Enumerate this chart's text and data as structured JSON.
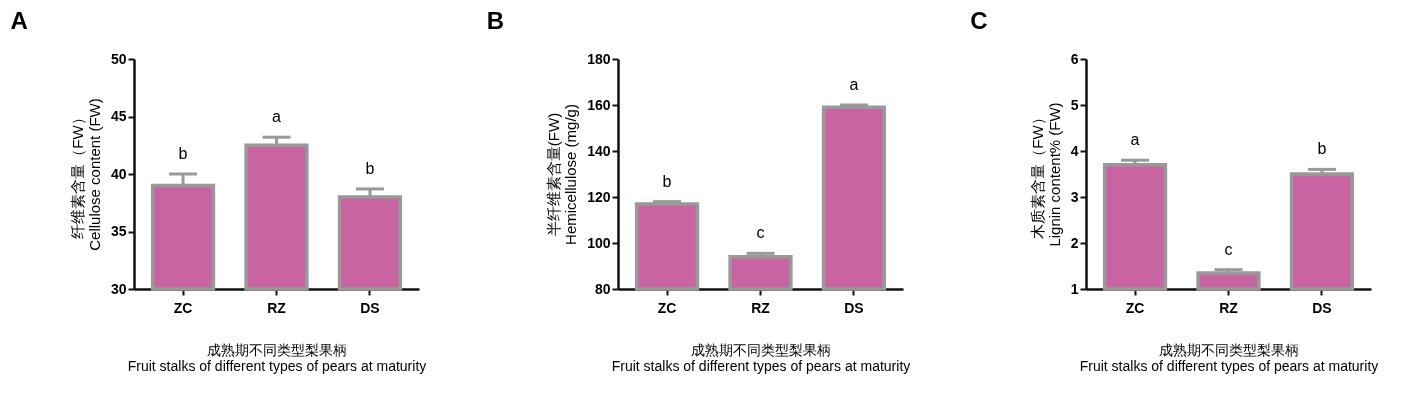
{
  "chart_data": [
    {
      "type": "bar",
      "title": "A",
      "xlabel": "成熟期不同类型梨果柄\nFruit stalks of different types of pears at maturity",
      "ylabel": "纤维素含量（FW）\nCellulose content (FW)",
      "categories": [
        "ZC",
        "RZ",
        "DS"
      ],
      "values": [
        39.0,
        42.5,
        38.0
      ],
      "errors": [
        1.0,
        0.7,
        0.7
      ],
      "color": "#c964a3",
      "ylim": [
        30,
        50
      ],
      "yticks": [
        30,
        35,
        40,
        45,
        50
      ],
      "grid": false,
      "annotations": [
        "b",
        "a",
        "b"
      ]
    },
    {
      "type": "bar",
      "title": "B",
      "xlabel": "成熟期不同类型梨果柄\nFruit stalks of different types of pears at maturity",
      "ylabel": "半纤维素含量(FW)\nHemicellulose (mg/g)",
      "categories": [
        "ZC",
        "RZ",
        "DS"
      ],
      "values": [
        117,
        94,
        159
      ],
      "errors": [
        1,
        1.5,
        1
      ],
      "color": "#c964a3",
      "ylim": [
        80,
        180
      ],
      "yticks": [
        80,
        100,
        120,
        140,
        160,
        180
      ],
      "grid": false,
      "annotations": [
        "b",
        "c",
        "a"
      ]
    },
    {
      "type": "bar",
      "title": "C",
      "xlabel": "成熟期不同类型梨果柄\nFruit stalks of different types of pears at maturity",
      "ylabel": "木质素含量（FW）\nLignin content% (FW)",
      "categories": [
        "ZC",
        "RZ",
        "DS"
      ],
      "values": [
        3.7,
        1.35,
        3.5
      ],
      "errors": [
        0.1,
        0.07,
        0.1
      ],
      "color": "#c964a3",
      "ylim": [
        1,
        6
      ],
      "yticks": [
        1,
        2,
        3,
        4,
        5,
        6
      ],
      "grid": false,
      "annotations": [
        "a",
        "c",
        "b"
      ]
    }
  ]
}
